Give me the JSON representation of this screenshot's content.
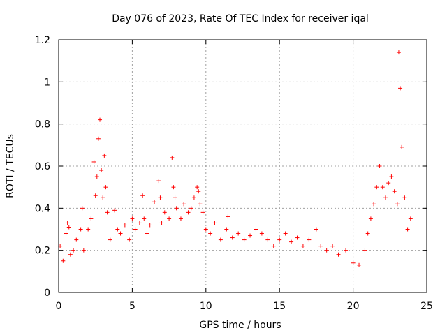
{
  "chart_data": {
    "type": "scatter",
    "title": "Day 076 of 2023, Rate Of TEC Index for receiver iqal",
    "xlabel": "GPS time / hours",
    "ylabel": "ROTI / TECUs",
    "xlim": [
      0,
      25
    ],
    "ylim": [
      0,
      1.2
    ],
    "x_ticks": [
      0,
      5,
      10,
      15,
      20,
      25
    ],
    "y_ticks": [
      0,
      0.2,
      0.4,
      0.6,
      0.8,
      1,
      1.2
    ],
    "x_tick_labels": [
      "0",
      "5",
      "10",
      "15",
      "20",
      "25"
    ],
    "y_tick_labels": [
      "0",
      "0.2",
      "0.4",
      "0.6",
      "0.8",
      "1",
      "1.2"
    ],
    "grid": true,
    "marker": "+",
    "series": [
      {
        "name": "ROTI",
        "color": "#ff0000",
        "x": [
          0.1,
          0.3,
          0.5,
          0.6,
          0.7,
          0.8,
          1.0,
          1.2,
          1.5,
          1.6,
          1.7,
          2.0,
          2.2,
          2.4,
          2.5,
          2.6,
          2.7,
          2.8,
          2.9,
          3.0,
          3.1,
          3.2,
          3.3,
          3.5,
          3.8,
          4.0,
          4.2,
          4.5,
          4.8,
          5.0,
          5.2,
          5.5,
          5.7,
          5.8,
          6.0,
          6.2,
          6.5,
          6.8,
          6.9,
          7.0,
          7.2,
          7.5,
          7.7,
          7.8,
          7.9,
          8.0,
          8.3,
          8.5,
          8.8,
          9.0,
          9.2,
          9.4,
          9.5,
          9.6,
          9.8,
          10.0,
          10.3,
          10.6,
          11.0,
          11.4,
          11.5,
          11.8,
          12.2,
          12.6,
          13.0,
          13.4,
          13.8,
          14.2,
          14.6,
          15.0,
          15.4,
          15.8,
          16.2,
          16.6,
          17.0,
          17.5,
          17.8,
          18.2,
          18.6,
          19.0,
          19.5,
          20.0,
          20.4,
          20.8,
          21.0,
          21.2,
          21.4,
          21.6,
          21.8,
          22.0,
          22.2,
          22.4,
          22.6,
          22.8,
          23.0,
          23.1,
          23.2,
          23.3,
          23.5,
          23.7,
          23.9
        ],
        "y": [
          0.22,
          0.15,
          0.28,
          0.33,
          0.31,
          0.18,
          0.2,
          0.25,
          0.3,
          0.4,
          0.2,
          0.3,
          0.35,
          0.62,
          0.46,
          0.55,
          0.73,
          0.82,
          0.58,
          0.45,
          0.65,
          0.5,
          0.38,
          0.25,
          0.39,
          0.3,
          0.28,
          0.32,
          0.25,
          0.35,
          0.3,
          0.33,
          0.46,
          0.35,
          0.28,
          0.32,
          0.43,
          0.53,
          0.45,
          0.33,
          0.38,
          0.35,
          0.64,
          0.5,
          0.45,
          0.4,
          0.35,
          0.42,
          0.38,
          0.4,
          0.45,
          0.5,
          0.48,
          0.42,
          0.38,
          0.3,
          0.28,
          0.33,
          0.25,
          0.3,
          0.36,
          0.26,
          0.28,
          0.25,
          0.27,
          0.3,
          0.28,
          0.25,
          0.22,
          0.25,
          0.28,
          0.24,
          0.26,
          0.22,
          0.25,
          0.3,
          0.22,
          0.2,
          0.22,
          0.18,
          0.2,
          0.14,
          0.13,
          0.2,
          0.28,
          0.35,
          0.42,
          0.5,
          0.6,
          0.5,
          0.45,
          0.52,
          0.55,
          0.48,
          0.42,
          1.14,
          0.97,
          0.69,
          0.45,
          0.3,
          0.35
        ]
      }
    ]
  }
}
